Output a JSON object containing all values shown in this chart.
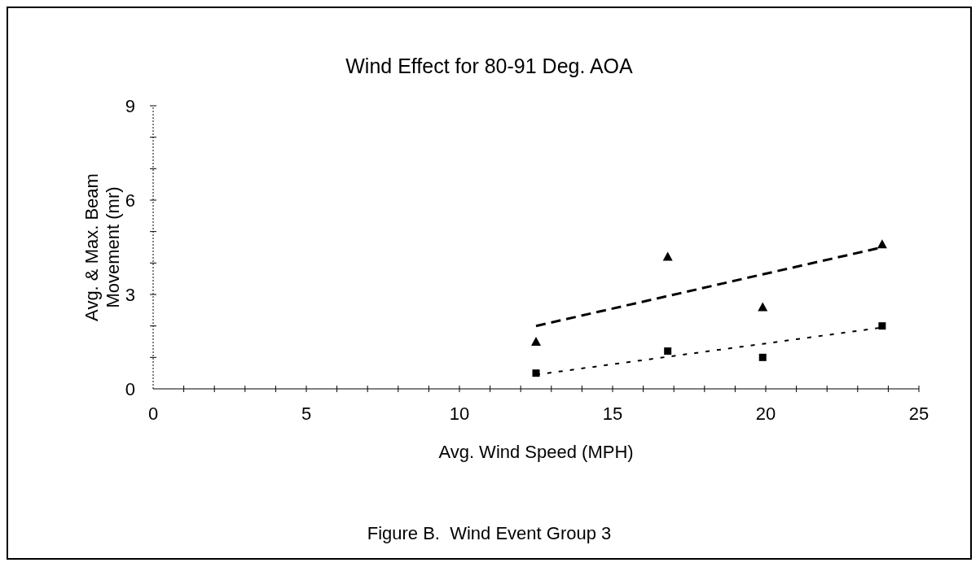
{
  "chart_data": {
    "type": "scatter",
    "title": "Wind Effect for 80-91 Deg. AOA",
    "xlabel": "Avg. Wind Speed (MPH)",
    "ylabel": "Avg. & Max. Beam Movement (mr)",
    "annotations": [
      "Figure B.  Wind Event Group 3"
    ],
    "x": [
      12.5,
      16.8,
      19.9,
      23.8
    ],
    "series": [
      {
        "marker": "triangle",
        "color": "#000000",
        "values": [
          1.5,
          4.2,
          2.6,
          4.6
        ]
      },
      {
        "marker": "square",
        "color": "#000000",
        "values": [
          0.5,
          1.2,
          1.0,
          2.0
        ]
      },
      {
        "type": "line",
        "marker": "none",
        "line_style": "dashed",
        "color": "#000000",
        "values": [
          2.0,
          2.95,
          3.64,
          4.5
        ]
      },
      {
        "type": "line",
        "marker": "none",
        "line_style": "dotted",
        "color": "#000000",
        "values": [
          0.45,
          1.02,
          1.43,
          1.95
        ]
      }
    ],
    "xlim": [
      0,
      25
    ],
    "ylim": [
      0,
      9
    ],
    "xticks": [
      0,
      {
        "value": 1,
        "label": null
      },
      {
        "value": 2,
        "label": null
      },
      {
        "value": 3,
        "label": null
      },
      {
        "value": 4,
        "label": null
      },
      5,
      {
        "value": 6,
        "label": null
      },
      {
        "value": 7,
        "label": null
      },
      {
        "value": 8,
        "label": null
      },
      {
        "value": 9,
        "label": null
      },
      10,
      {
        "value": 11,
        "label": null
      },
      {
        "value": 12,
        "label": null
      },
      {
        "value": 13,
        "label": null
      },
      {
        "value": 14,
        "label": null
      },
      15,
      {
        "value": 16,
        "label": null
      },
      {
        "value": 17,
        "label": null
      },
      {
        "value": 18,
        "label": null
      },
      {
        "value": 19,
        "label": null
      },
      20,
      {
        "value": 21,
        "label": null
      },
      {
        "value": 22,
        "label": null
      },
      {
        "value": 23,
        "label": null
      },
      {
        "value": 24,
        "label": null
      },
      25
    ],
    "yticks": [
      0,
      {
        "value": 1,
        "label": null
      },
      {
        "value": 2,
        "label": null
      },
      3,
      {
        "value": 4,
        "label": null
      },
      {
        "value": 5,
        "label": null
      },
      6,
      {
        "value": 7,
        "label": null
      },
      {
        "value": 8,
        "label": null
      },
      9
    ],
    "grid": false
  }
}
